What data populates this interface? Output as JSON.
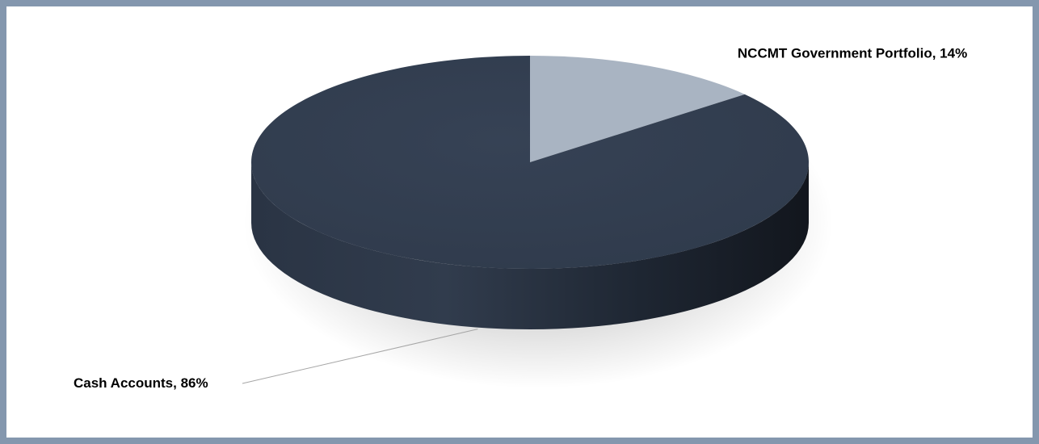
{
  "chart_data": {
    "type": "pie",
    "style": "3d",
    "title": "",
    "slices": [
      {
        "label": "NCCMT Government Portfolio",
        "value": 14,
        "display": "NCCMT Government Portfolio, 14%",
        "color": "#A9B4C2"
      },
      {
        "label": "Cash Accounts",
        "value": 86,
        "display": "Cash Accounts, 86%",
        "color": "#333F50"
      }
    ],
    "legend": "none",
    "data_labels": "outside, category name and percentage"
  },
  "colors": {
    "frame_border": "#8497AE",
    "background": "#FFFFFF",
    "side_dark": "#161B24",
    "leader_line": "#A6A6A6"
  }
}
